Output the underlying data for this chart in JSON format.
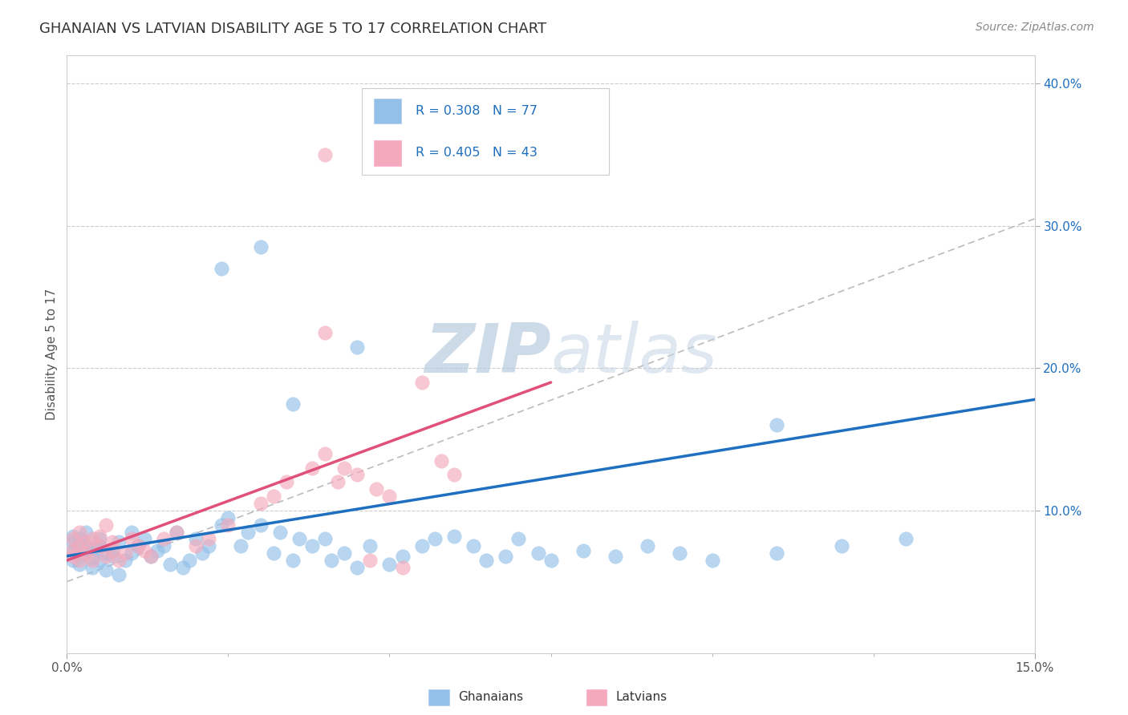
{
  "title": "GHANAIAN VS LATVIAN DISABILITY AGE 5 TO 17 CORRELATION CHART",
  "source_text": "Source: ZipAtlas.com",
  "ylabel": "Disability Age 5 to 17",
  "xlim": [
    0.0,
    0.15
  ],
  "ylim": [
    0.0,
    0.42
  ],
  "ytick_values": [
    0.1,
    0.2,
    0.3,
    0.4
  ],
  "blue_color": "#92C0E8",
  "pink_color": "#F4AABC",
  "blue_line_color": "#1E6FBF",
  "pink_line_color": "#E0507A",
  "gray_dashed_color": "#BBBBBB",
  "watermark": "ZIPatlas",
  "watermark_color": "#C8D8E8",
  "background_color": "#FFFFFF",
  "title_color": "#333333",
  "title_fontsize": 13,
  "gh_x": [
    0.001,
    0.001,
    0.001,
    0.001,
    0.002,
    0.002,
    0.002,
    0.002,
    0.003,
    0.003,
    0.003,
    0.004,
    0.004,
    0.004,
    0.005,
    0.005,
    0.005,
    0.006,
    0.006,
    0.007,
    0.007,
    0.008,
    0.008,
    0.009,
    0.01,
    0.01,
    0.011,
    0.012,
    0.013,
    0.014,
    0.015,
    0.016,
    0.017,
    0.018,
    0.019,
    0.02,
    0.021,
    0.022,
    0.024,
    0.025,
    0.027,
    0.028,
    0.03,
    0.032,
    0.033,
    0.035,
    0.036,
    0.038,
    0.04,
    0.041,
    0.043,
    0.045,
    0.047,
    0.05,
    0.052,
    0.055,
    0.057,
    0.06,
    0.063,
    0.065,
    0.068,
    0.07,
    0.073,
    0.075,
    0.08,
    0.085,
    0.09,
    0.095,
    0.1,
    0.11,
    0.12,
    0.13,
    0.024,
    0.03,
    0.035,
    0.045,
    0.11
  ],
  "gh_y": [
    0.065,
    0.072,
    0.078,
    0.082,
    0.068,
    0.075,
    0.08,
    0.062,
    0.07,
    0.076,
    0.085,
    0.067,
    0.073,
    0.06,
    0.075,
    0.08,
    0.065,
    0.07,
    0.058,
    0.072,
    0.068,
    0.078,
    0.055,
    0.065,
    0.07,
    0.085,
    0.075,
    0.08,
    0.068,
    0.072,
    0.075,
    0.062,
    0.085,
    0.06,
    0.065,
    0.08,
    0.07,
    0.075,
    0.09,
    0.095,
    0.075,
    0.085,
    0.09,
    0.07,
    0.085,
    0.065,
    0.08,
    0.075,
    0.08,
    0.065,
    0.07,
    0.06,
    0.075,
    0.062,
    0.068,
    0.075,
    0.08,
    0.082,
    0.075,
    0.065,
    0.068,
    0.08,
    0.07,
    0.065,
    0.072,
    0.068,
    0.075,
    0.07,
    0.065,
    0.07,
    0.075,
    0.08,
    0.27,
    0.285,
    0.175,
    0.215,
    0.16
  ],
  "la_x": [
    0.001,
    0.001,
    0.001,
    0.002,
    0.002,
    0.002,
    0.003,
    0.003,
    0.004,
    0.004,
    0.005,
    0.005,
    0.006,
    0.006,
    0.007,
    0.007,
    0.008,
    0.009,
    0.01,
    0.011,
    0.012,
    0.013,
    0.015,
    0.017,
    0.02,
    0.022,
    0.025,
    0.03,
    0.032,
    0.034,
    0.038,
    0.04,
    0.042,
    0.045,
    0.048,
    0.05,
    0.055,
    0.058,
    0.06,
    0.04,
    0.043,
    0.047,
    0.052
  ],
  "la_y": [
    0.068,
    0.072,
    0.08,
    0.065,
    0.075,
    0.085,
    0.07,
    0.078,
    0.065,
    0.08,
    0.075,
    0.082,
    0.068,
    0.09,
    0.072,
    0.078,
    0.065,
    0.07,
    0.08,
    0.075,
    0.072,
    0.068,
    0.08,
    0.085,
    0.075,
    0.08,
    0.09,
    0.105,
    0.11,
    0.12,
    0.13,
    0.14,
    0.12,
    0.125,
    0.115,
    0.11,
    0.19,
    0.135,
    0.125,
    0.225,
    0.13,
    0.065,
    0.06
  ],
  "la_outlier_x": [
    0.04
  ],
  "la_outlier_y": [
    0.35
  ],
  "blue_trend": [
    0.0,
    0.15,
    0.068,
    0.178
  ],
  "pink_trend": [
    0.0,
    0.075,
    0.065,
    0.19
  ],
  "gray_dash": [
    0.0,
    0.15,
    0.05,
    0.305
  ]
}
